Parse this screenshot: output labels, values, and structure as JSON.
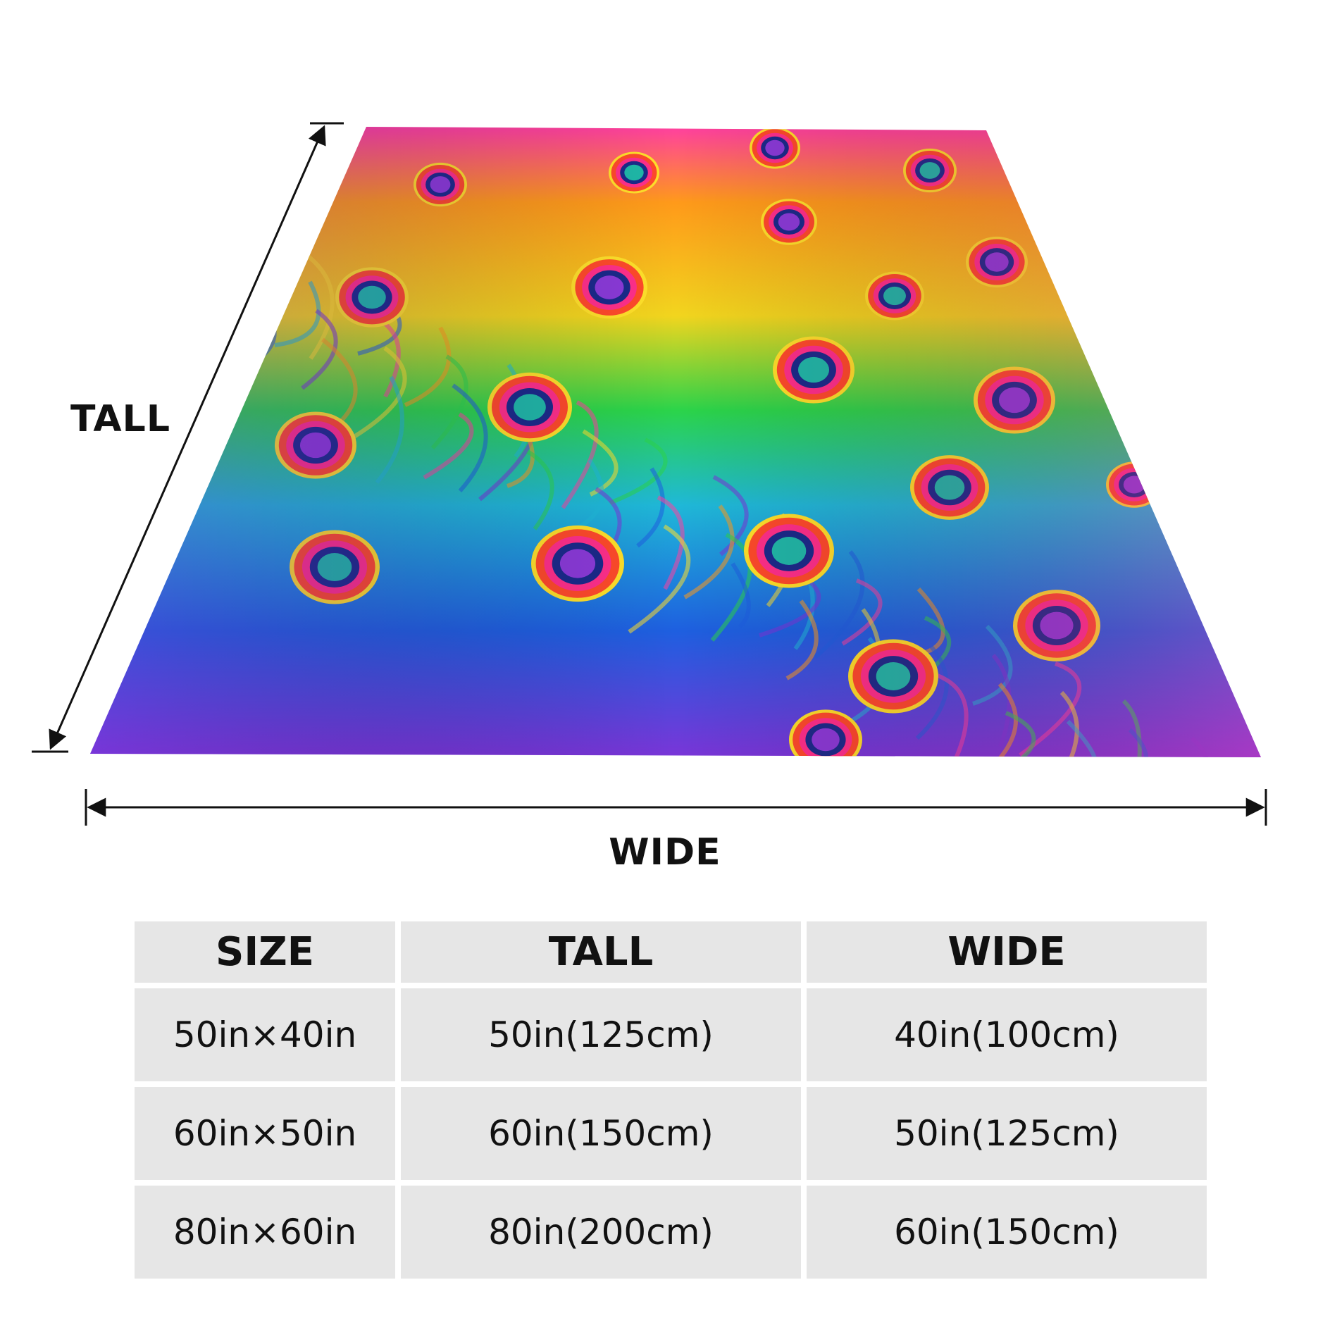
{
  "diagram": {
    "tall_label": "TALL",
    "wide_label": "WIDE",
    "blanket_pattern": "rainbow peacock feathers"
  },
  "table": {
    "headers": [
      "SIZE",
      "TALL",
      "WIDE"
    ],
    "rows": [
      [
        "50in×40in",
        "50in(125cm)",
        "40in(100cm)"
      ],
      [
        "60in×50in",
        "60in(150cm)",
        "50in(125cm)"
      ],
      [
        "80in×60in",
        "80in(200cm)",
        "60in(150cm)"
      ]
    ]
  },
  "colors": {
    "table_cell_bg": "#e6e6e6",
    "text": "#111111",
    "feather_colors": [
      "#ff3fa0",
      "#ff9a1a",
      "#ffe02a",
      "#2bd44a",
      "#1fb8d8",
      "#1e5fe0",
      "#7a35d8"
    ]
  }
}
